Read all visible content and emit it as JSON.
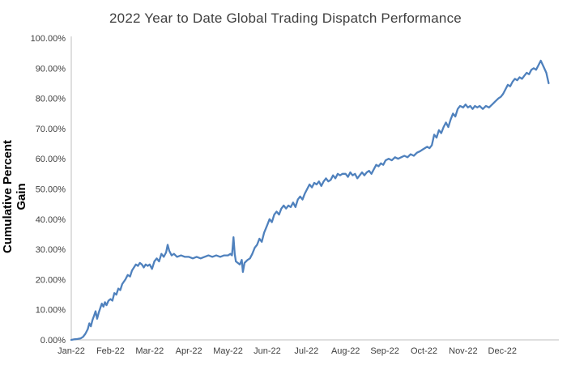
{
  "page": {
    "background_color": "#ffffff"
  },
  "chart_data": {
    "type": "line",
    "title": "2022 Year to Date Global Trading Dispatch Performance",
    "xlabel": "",
    "ylabel": "Cumulative Percent Gain",
    "legend": "none",
    "grid": "off",
    "line_color": "#4f81bd",
    "axis_color": "#bfbfbf",
    "tick_label_color": "#404040",
    "title_color": "#3f3f3f",
    "ylim": [
      0,
      100
    ],
    "xlim": [
      0,
      12.4
    ],
    "y_tick_values": [
      0,
      10,
      20,
      30,
      40,
      50,
      60,
      70,
      80,
      90,
      100
    ],
    "y_tick_labels": [
      "0.00%",
      "10.00%",
      "20.00%",
      "30.00%",
      "40.00%",
      "50.00%",
      "60.00%",
      "70.00%",
      "80.00%",
      "90.00%",
      "100.00%"
    ],
    "x_tick_values": [
      0,
      1,
      2,
      3,
      4,
      5,
      6,
      7,
      8,
      9,
      10,
      11
    ],
    "x_tick_labels": [
      "Jan-22",
      "Feb-22",
      "Mar-22",
      "Apr-22",
      "May-22",
      "Jun-22",
      "Jul-22",
      "Aug-22",
      "Sep-22",
      "Oct-22",
      "Nov-22",
      "Dec-22"
    ],
    "series": [
      {
        "name": "Cumulative Percent Gain",
        "x": [
          0,
          0.08,
          0.16,
          0.24,
          0.3,
          0.36,
          0.42,
          0.46,
          0.5,
          0.54,
          0.58,
          0.62,
          0.66,
          0.7,
          0.74,
          0.78,
          0.82,
          0.86,
          0.9,
          0.95,
          1.0,
          1.05,
          1.1,
          1.15,
          1.2,
          1.25,
          1.3,
          1.38,
          1.44,
          1.5,
          1.55,
          1.6,
          1.65,
          1.7,
          1.75,
          1.8,
          1.85,
          1.9,
          1.95,
          2.0,
          2.06,
          2.12,
          2.18,
          2.24,
          2.3,
          2.36,
          2.42,
          2.46,
          2.5,
          2.56,
          2.62,
          2.7,
          2.8,
          2.9,
          3.0,
          3.1,
          3.2,
          3.3,
          3.4,
          3.5,
          3.6,
          3.7,
          3.8,
          3.9,
          4.0,
          4.06,
          4.1,
          4.14,
          4.17,
          4.2,
          4.25,
          4.3,
          4.35,
          4.38,
          4.42,
          4.46,
          4.5,
          4.56,
          4.62,
          4.68,
          4.74,
          4.8,
          4.86,
          4.92,
          5.0,
          5.06,
          5.12,
          5.18,
          5.24,
          5.3,
          5.36,
          5.42,
          5.48,
          5.54,
          5.6,
          5.66,
          5.72,
          5.78,
          5.84,
          5.9,
          5.96,
          6.02,
          6.08,
          6.14,
          6.2,
          6.26,
          6.32,
          6.38,
          6.44,
          6.5,
          6.56,
          6.62,
          6.68,
          6.74,
          6.8,
          6.86,
          6.92,
          7.0,
          7.06,
          7.12,
          7.18,
          7.24,
          7.3,
          7.36,
          7.42,
          7.48,
          7.54,
          7.6,
          7.66,
          7.72,
          7.78,
          7.84,
          7.9,
          7.96,
          8.02,
          8.1,
          8.18,
          8.26,
          8.34,
          8.42,
          8.5,
          8.58,
          8.66,
          8.74,
          8.82,
          8.9,
          8.96,
          9.02,
          9.08,
          9.14,
          9.2,
          9.26,
          9.32,
          9.38,
          9.44,
          9.5,
          9.56,
          9.62,
          9.68,
          9.74,
          9.8,
          9.86,
          9.92,
          10.0,
          10.06,
          10.12,
          10.18,
          10.24,
          10.3,
          10.36,
          10.42,
          10.5,
          10.58,
          10.66,
          10.74,
          10.82,
          10.9,
          10.96,
          11.02,
          11.08,
          11.14,
          11.2,
          11.26,
          11.32,
          11.38,
          11.44,
          11.5,
          11.56,
          11.62,
          11.68,
          11.74,
          11.8,
          11.86,
          11.92,
          11.98,
          12.05,
          12.12,
          12.18
        ],
        "y": [
          0,
          0.2,
          0.3,
          0.5,
          1,
          2,
          3.5,
          5.5,
          4.5,
          6.5,
          8,
          9.5,
          7,
          9,
          10.5,
          12,
          11,
          12.5,
          11.5,
          13,
          13.5,
          13,
          15.5,
          15,
          17,
          16.5,
          18.5,
          20,
          21.5,
          21,
          23,
          24,
          25,
          24.5,
          25.5,
          25,
          24,
          25,
          24.5,
          25,
          23.5,
          26,
          27,
          26,
          28.5,
          27.5,
          29,
          31.5,
          29.5,
          28,
          28.5,
          27.5,
          28,
          27.5,
          27.5,
          27,
          27.5,
          27,
          27.5,
          28,
          27.5,
          28,
          27.5,
          28,
          28,
          28.5,
          28,
          34,
          28.5,
          26,
          25.5,
          25,
          26.5,
          22.5,
          25.5,
          26,
          26.5,
          27,
          28.5,
          30.5,
          31.5,
          33.5,
          32.5,
          35.5,
          38,
          40,
          39,
          41.5,
          42.5,
          41.5,
          43.5,
          44.5,
          43.5,
          44.5,
          44,
          45.5,
          44,
          46.5,
          47.5,
          46.5,
          48.5,
          50,
          51.5,
          50.5,
          52,
          51.5,
          52.5,
          51,
          52.5,
          53.5,
          52.5,
          53,
          54.5,
          53.5,
          55,
          54.5,
          55,
          55,
          54,
          55.5,
          54.5,
          55,
          53.5,
          54.5,
          55.5,
          54.5,
          55.5,
          56,
          55,
          56.5,
          58,
          57.5,
          58.5,
          58,
          59.5,
          60,
          59.5,
          60.5,
          60,
          60.5,
          61,
          60.5,
          61.5,
          61,
          62,
          62.5,
          63,
          63.5,
          64,
          63.5,
          64.5,
          68,
          67,
          69.5,
          68.5,
          70.5,
          72,
          70.5,
          73,
          75,
          74,
          76.5,
          77.5,
          77,
          78,
          77,
          77.5,
          76.5,
          77.5,
          77,
          77.5,
          76.5,
          77.5,
          77,
          78,
          79,
          80,
          80.5,
          81.5,
          83,
          84.5,
          84,
          85.5,
          86.5,
          86,
          87,
          86.5,
          87.5,
          88.5,
          88,
          89.5,
          90,
          89.5,
          91,
          92.5,
          90.5,
          88.5,
          85
        ]
      }
    ]
  }
}
